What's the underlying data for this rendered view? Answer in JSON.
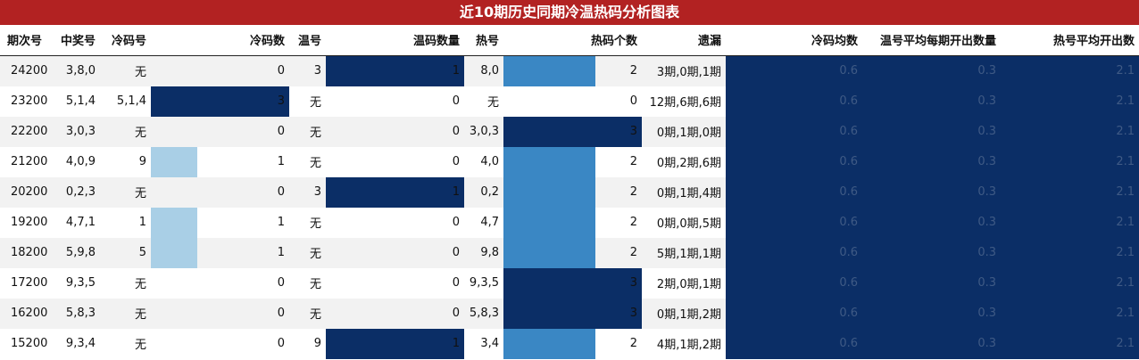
{
  "title": "近10期历史同期冷温热码分析图表",
  "colors": {
    "title_bg": "#b22222",
    "level_dark": "#0b2e66",
    "level_mid": "#3a87c4",
    "level_light": "#a9cfe6",
    "avg_bg": "#0b2e66"
  },
  "headers": [
    "期次号",
    "中奖号",
    "冷码号",
    "冷码数",
    "温号",
    "温码数量",
    "热号",
    "热码个数",
    "遗漏",
    "冷码均数",
    "温号平均每期开出数量",
    "热号平均开出数"
  ],
  "rows": [
    {
      "period": "24200",
      "win": "3,8,0",
      "cold_nums": "无",
      "cold_count": "0",
      "warm_nums": "3",
      "warm_count": "1",
      "hot_nums": "8,0",
      "hot_count": "2",
      "miss": "3期,0期,1期",
      "cold_avg": "0.6",
      "warm_avg": "0.3",
      "hot_avg": "2.1"
    },
    {
      "period": "23200",
      "win": "5,1,4",
      "cold_nums": "5,1,4",
      "cold_count": "3",
      "warm_nums": "无",
      "warm_count": "0",
      "hot_nums": "无",
      "hot_count": "0",
      "miss": "12期,6期,6期",
      "cold_avg": "0.6",
      "warm_avg": "0.3",
      "hot_avg": "2.1"
    },
    {
      "period": "22200",
      "win": "3,0,3",
      "cold_nums": "无",
      "cold_count": "0",
      "warm_nums": "无",
      "warm_count": "0",
      "hot_nums": "3,0,3",
      "hot_count": "3",
      "miss": "0期,1期,0期",
      "cold_avg": "0.6",
      "warm_avg": "0.3",
      "hot_avg": "2.1"
    },
    {
      "period": "21200",
      "win": "4,0,9",
      "cold_nums": "9",
      "cold_count": "1",
      "warm_nums": "无",
      "warm_count": "0",
      "hot_nums": "4,0",
      "hot_count": "2",
      "miss": "0期,2期,6期",
      "cold_avg": "0.6",
      "warm_avg": "0.3",
      "hot_avg": "2.1"
    },
    {
      "period": "20200",
      "win": "0,2,3",
      "cold_nums": "无",
      "cold_count": "0",
      "warm_nums": "3",
      "warm_count": "1",
      "hot_nums": "0,2",
      "hot_count": "2",
      "miss": "0期,1期,4期",
      "cold_avg": "0.6",
      "warm_avg": "0.3",
      "hot_avg": "2.1"
    },
    {
      "period": "19200",
      "win": "4,7,1",
      "cold_nums": "1",
      "cold_count": "1",
      "warm_nums": "无",
      "warm_count": "0",
      "hot_nums": "4,7",
      "hot_count": "2",
      "miss": "0期,0期,5期",
      "cold_avg": "0.6",
      "warm_avg": "0.3",
      "hot_avg": "2.1"
    },
    {
      "period": "18200",
      "win": "5,9,8",
      "cold_nums": "5",
      "cold_count": "1",
      "warm_nums": "无",
      "warm_count": "0",
      "hot_nums": "9,8",
      "hot_count": "2",
      "miss": "5期,1期,1期",
      "cold_avg": "0.6",
      "warm_avg": "0.3",
      "hot_avg": "2.1"
    },
    {
      "period": "17200",
      "win": "9,3,5",
      "cold_nums": "无",
      "cold_count": "0",
      "warm_nums": "无",
      "warm_count": "0",
      "hot_nums": "9,3,5",
      "hot_count": "3",
      "miss": "2期,0期,1期",
      "cold_avg": "0.6",
      "warm_avg": "0.3",
      "hot_avg": "2.1"
    },
    {
      "period": "16200",
      "win": "5,8,3",
      "cold_nums": "无",
      "cold_count": "0",
      "warm_nums": "无",
      "warm_count": "0",
      "hot_nums": "5,8,3",
      "hot_count": "3",
      "miss": "0期,1期,2期",
      "cold_avg": "0.6",
      "warm_avg": "0.3",
      "hot_avg": "2.1"
    },
    {
      "period": "15200",
      "win": "9,3,4",
      "cold_nums": "无",
      "cold_count": "0",
      "warm_nums": "9",
      "warm_count": "1",
      "hot_nums": "3,4",
      "hot_count": "2",
      "miss": "4期,1期,2期",
      "cold_avg": "0.6",
      "warm_avg": "0.3",
      "hot_avg": "2.1"
    }
  ]
}
